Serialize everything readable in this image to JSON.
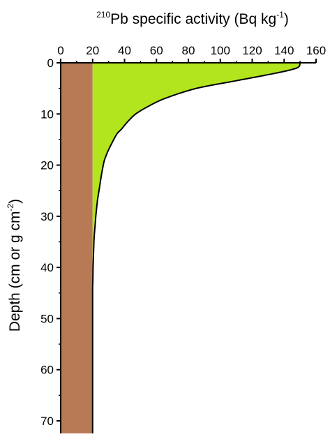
{
  "chart_data": {
    "type": "area",
    "title": "",
    "xlabel": {
      "pre_sup": "210",
      "main": "Pb specific activity (Bq kg",
      "sup": "-1",
      "post": ")"
    },
    "ylabel": {
      "main": "Depth (cm or g cm",
      "sup": "-2",
      "post": ")"
    },
    "xlim": [
      0,
      160
    ],
    "ylim": [
      0,
      75
    ],
    "y_inverted": true,
    "x_axis_position": "top",
    "grid": false,
    "x_ticks": [
      "0",
      "20",
      "40",
      "60",
      "80",
      "100",
      "120",
      "140",
      "160"
    ],
    "y_ticks": [
      "0",
      "10",
      "20",
      "30",
      "40",
      "50",
      "60",
      "70"
    ],
    "supported_activity": 20,
    "profile_x": [
      150,
      148,
      135,
      110,
      85,
      65,
      55,
      47,
      42,
      38,
      35,
      30,
      28,
      27,
      25.5,
      24,
      23,
      22,
      21.5,
      21,
      20.7,
      20.5,
      20.3,
      20.2,
      20
    ],
    "profile_y": [
      0,
      1,
      2,
      3.5,
      5,
      7,
      8.5,
      10,
      11.5,
      13,
      14,
      17,
      18.5,
      19.5,
      22,
      25,
      27,
      30,
      32,
      34,
      36,
      38,
      40,
      42,
      44
    ],
    "colors": {
      "supported": "#b87a55",
      "excess": "#b3e51e",
      "line": "#000000",
      "background": "#ffffff"
    }
  }
}
